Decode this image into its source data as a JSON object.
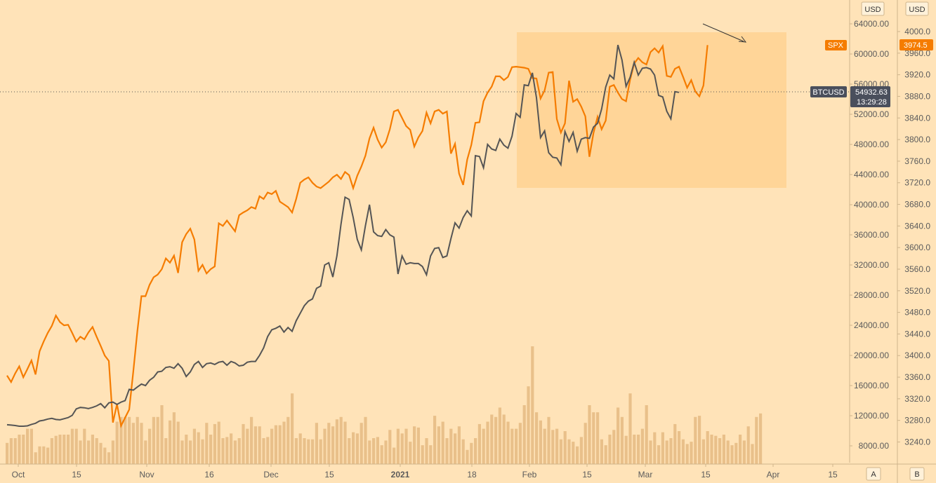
{
  "colors": {
    "background": "#ffe3b8",
    "spx_line": "#f57c00",
    "btc_line": "#555555",
    "volume": "#e9c08a",
    "box_fill": "#ffcf8a",
    "btc_label_bg": "#4a4f5c",
    "spx_label_bg": "#f57c00",
    "axis_border": "#cfb58c"
  },
  "axes": {
    "left_currency": "USD",
    "right_currency": "USD",
    "x_ticks": [
      "Oct",
      "15",
      "Nov",
      "16",
      "Dec",
      "15",
      "2021",
      "18",
      "Feb",
      "15",
      "Mar",
      "15",
      "Apr",
      "15"
    ],
    "bottom_buttons": [
      "A",
      "B"
    ]
  },
  "labels": {
    "spx_name": "SPX",
    "btc_name": "BTCUSD",
    "spx_current": "3974.5",
    "btc_current": "54932.63",
    "countdown": "13:29:28"
  },
  "chart_data": {
    "type": "line",
    "btc_axis": {
      "ticks": [
        64000,
        60000,
        56000,
        52000,
        48000,
        44000,
        40000,
        36000,
        32000,
        28000,
        24000,
        20000,
        16000,
        12000,
        8000
      ],
      "tick_labels": [
        "64000.00",
        "60000.00",
        "56000.00",
        "52000.00",
        "48000.00",
        "44000.00",
        "40000.00",
        "36000.00",
        "32000.00",
        "28000.00",
        "24000.00",
        "20000.00",
        "16000.00",
        "12000.00",
        "8000.00"
      ]
    },
    "spx_axis": {
      "ticks": [
        4000,
        3960,
        3920,
        3880,
        3840,
        3800,
        3760,
        3720,
        3680,
        3640,
        3600,
        3560,
        3520,
        3480,
        3440,
        3400,
        3360,
        3320,
        3280,
        3240
      ],
      "tick_labels": [
        "4000.0",
        "3960.0",
        "3920.0",
        "3880.0",
        "3840.0",
        "3800.0",
        "3760.0",
        "3720.0",
        "3680.0",
        "3640.0",
        "3600.0",
        "3560.0",
        "3520.0",
        "3480.0",
        "3440.0",
        "3400.0",
        "3360.0",
        "3320.0",
        "3280.0",
        "3240.0"
      ]
    },
    "series": [
      {
        "name": "SPX",
        "values": [
          3363,
          3351,
          3367,
          3380,
          3360,
          3375,
          3391,
          3365,
          3408,
          3426,
          3442,
          3455,
          3474,
          3462,
          3456,
          3457,
          3442,
          3426,
          3435,
          3430,
          3443,
          3453,
          3435,
          3418,
          3400,
          3390,
          3276,
          3310,
          3270,
          3285,
          3300,
          3370,
          3445,
          3510,
          3510,
          3531,
          3545,
          3550,
          3560,
          3580,
          3572,
          3585,
          3553,
          3610,
          3625,
          3635,
          3615,
          3557,
          3568,
          3552,
          3560,
          3565,
          3645,
          3640,
          3650,
          3640,
          3630,
          3660,
          3665,
          3669,
          3675,
          3672,
          3695,
          3690,
          3702,
          3699,
          3705,
          3685,
          3680,
          3675,
          3665,
          3690,
          3720,
          3726,
          3730,
          3720,
          3713,
          3710,
          3716,
          3722,
          3730,
          3735,
          3727,
          3740,
          3734,
          3710,
          3733,
          3750,
          3770,
          3802,
          3822,
          3800,
          3785,
          3795,
          3819,
          3852,
          3855,
          3840,
          3825,
          3818,
          3787,
          3804,
          3816,
          3850,
          3830,
          3852,
          3855,
          3848,
          3852,
          3774,
          3792,
          3737,
          3716,
          3763,
          3790,
          3831,
          3832,
          3871,
          3887,
          3898,
          3917,
          3917,
          3910,
          3916,
          3934,
          3935,
          3934,
          3933,
          3931,
          3914,
          3913,
          3876,
          3891,
          3924,
          3925,
          3838,
          3813,
          3830,
          3909,
          3870,
          3875,
          3861,
          3843,
          3768,
          3812,
          3842,
          3819,
          3835,
          3898,
          3901,
          3887,
          3875,
          3871,
          3911,
          3941,
          3951,
          3943,
          3939,
          3962,
          3969,
          3961,
          3973,
          3918,
          3916,
          3931,
          3935,
          3916,
          3896,
          3910,
          3889,
          3880,
          3900,
          3975
        ]
      },
      {
        "name": "BTCUSD",
        "values": [
          10800,
          10750,
          10700,
          10600,
          10600,
          10650,
          10850,
          11000,
          11300,
          11400,
          11550,
          11650,
          11500,
          11450,
          11600,
          11750,
          12050,
          12900,
          13100,
          13050,
          12950,
          13100,
          13300,
          13600,
          13050,
          13700,
          13800,
          13500,
          13800,
          14000,
          15500,
          15400,
          15800,
          16200,
          16000,
          16700,
          17100,
          17800,
          17900,
          18400,
          18500,
          18300,
          18900,
          18300,
          17200,
          17800,
          18800,
          19200,
          18400,
          18900,
          19000,
          18800,
          19100,
          19200,
          18700,
          19200,
          19000,
          18600,
          18700,
          19100,
          19200,
          19200,
          20000,
          21000,
          22500,
          23400,
          23600,
          23900,
          23100,
          23700,
          23200,
          24600,
          25600,
          26600,
          27200,
          27500,
          28900,
          29200,
          32000,
          32300,
          30400,
          33200,
          37400,
          41000,
          40700,
          38300,
          35400,
          34000,
          37200,
          40000,
          36400,
          35900,
          35800,
          36700,
          36000,
          35700,
          30800,
          33200,
          32100,
          32300,
          32200,
          32200,
          31800,
          30700,
          33200,
          34200,
          34300,
          33000,
          33200,
          35500,
          37600,
          36900,
          38300,
          39200,
          38500,
          46500,
          46400,
          44900,
          48000,
          47400,
          47200,
          48700,
          47900,
          47500,
          49100,
          52100,
          51600,
          55900,
          55800,
          57500,
          54200,
          48900,
          49800,
          46900,
          46300,
          46200,
          45300,
          49700,
          48400,
          49600,
          47100,
          48700,
          48900,
          48800,
          50300,
          50800,
          52700,
          55600,
          57200,
          56700,
          61200,
          59200,
          55700,
          56900,
          58900,
          57200,
          58100,
          58200,
          58000,
          57200,
          54500,
          54300,
          52400,
          51400,
          55000,
          54900
        ]
      },
      {
        "name": "Volume",
        "values": [
          18,
          22,
          22,
          25,
          25,
          30,
          30,
          10,
          15,
          15,
          14,
          22,
          24,
          25,
          25,
          25,
          30,
          30,
          20,
          30,
          20,
          25,
          22,
          18,
          14,
          10,
          20,
          36,
          40,
          40,
          40,
          35,
          40,
          35,
          20,
          30,
          40,
          40,
          50,
          22,
          37,
          44,
          36,
          20,
          25,
          20,
          30,
          27,
          21,
          35,
          25,
          34,
          36,
          22,
          23,
          26,
          20,
          22,
          34,
          30,
          40,
          32,
          32,
          22,
          23,
          30,
          33,
          33,
          36,
          40,
          60,
          22,
          26,
          22,
          21,
          21,
          35,
          21,
          30,
          35,
          32,
          38,
          40,
          36,
          22,
          27,
          26,
          35,
          40,
          20,
          22,
          23,
          16,
          20,
          29,
          14,
          30,
          26,
          30,
          19,
          32,
          31,
          16,
          22,
          16,
          41,
          32,
          36,
          22,
          30,
          26,
          32,
          21,
          12,
          18,
          22,
          34,
          30,
          36,
          42,
          40,
          48,
          42,
          36,
          30,
          30,
          35,
          50,
          66,
          100,
          44,
          37,
          30,
          40,
          29,
          30,
          21,
          28,
          21,
          19,
          15,
          23,
          35,
          50,
          44,
          44,
          21,
          16,
          25,
          29,
          48,
          40,
          24,
          60,
          25,
          25,
          30,
          50,
          20,
          27,
          16,
          27,
          20,
          22,
          34,
          28,
          21,
          17,
          19,
          40,
          41,
          21,
          28,
          25,
          24,
          22,
          25,
          20,
          16,
          18,
          25,
          20,
          32,
          17,
          40,
          43
        ]
      }
    ],
    "annotation": {
      "type": "rectangle",
      "x_range": [
        "Jan 26",
        "Mar 31"
      ],
      "btc_range": [
        42200,
        63200
      ]
    },
    "xlim": [
      "Sep 26",
      "Apr 22"
    ],
    "ylim_btc": [
      6000,
      68000
    ],
    "ylim_spx": [
      3210,
      4010
    ]
  }
}
